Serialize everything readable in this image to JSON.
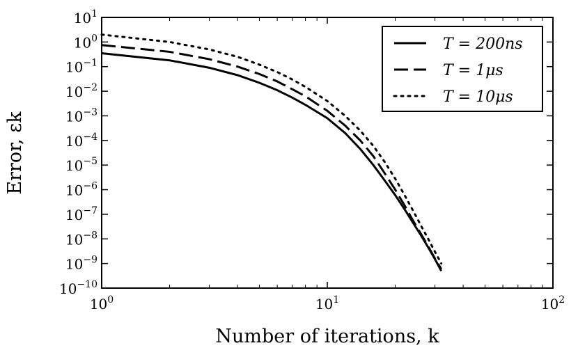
{
  "chart_data": {
    "type": "line",
    "xlabel": "Number of iterations, k",
    "ylabel": "Error, εk",
    "xscale": "log",
    "yscale": "log",
    "xlim": [
      1,
      100
    ],
    "ylim": [
      1e-10,
      10
    ],
    "x_ticks": [
      {
        "value": 1,
        "base": "10",
        "exp": "0"
      },
      {
        "value": 10,
        "base": "10",
        "exp": "1"
      },
      {
        "value": 100,
        "base": "10",
        "exp": "2"
      }
    ],
    "y_ticks": [
      {
        "value": 10,
        "base": "10",
        "exp": "1"
      },
      {
        "value": 1,
        "base": "10",
        "exp": "0"
      },
      {
        "value": 0.1,
        "base": "10",
        "exp": "−1"
      },
      {
        "value": 0.01,
        "base": "10",
        "exp": "−2"
      },
      {
        "value": 0.001,
        "base": "10",
        "exp": "−3"
      },
      {
        "value": 0.0001,
        "base": "10",
        "exp": "−4"
      },
      {
        "value": 1e-05,
        "base": "10",
        "exp": "−5"
      },
      {
        "value": 1e-06,
        "base": "10",
        "exp": "−6"
      },
      {
        "value": 1e-07,
        "base": "10",
        "exp": "−7"
      },
      {
        "value": 1e-08,
        "base": "10",
        "exp": "−8"
      },
      {
        "value": 1e-09,
        "base": "10",
        "exp": "−9"
      },
      {
        "value": 1e-10,
        "base": "10",
        "exp": "−10"
      }
    ],
    "grid": false,
    "legend_position": "top-right",
    "series": [
      {
        "name": "T = 200ns",
        "style": "solid",
        "x": [
          1,
          2,
          3,
          4,
          5,
          6,
          7,
          8,
          10,
          12,
          14,
          16,
          18,
          20,
          22,
          24,
          26,
          28,
          30,
          32
        ],
        "y": [
          0.35,
          0.18,
          0.09,
          0.045,
          0.022,
          0.011,
          0.0055,
          0.0028,
          0.0008,
          0.0002,
          4.5e-05,
          1e-05,
          2.3e-06,
          6e-07,
          1.6e-07,
          4.5e-08,
          1.4e-08,
          4.5e-09,
          1.5e-09,
          5e-10
        ]
      },
      {
        "name": "T = 1μs",
        "style": "dashed",
        "x": [
          1,
          2,
          3,
          4,
          5,
          6,
          7,
          8,
          10,
          12,
          14,
          16,
          18,
          20,
          22,
          24,
          26,
          28,
          30,
          32
        ],
        "y": [
          0.75,
          0.4,
          0.2,
          0.1,
          0.05,
          0.025,
          0.012,
          0.0062,
          0.0016,
          0.0004,
          0.0001,
          2.3e-05,
          4.5e-06,
          1e-06,
          2.3e-07,
          5.5e-08,
          1.6e-08,
          5e-09,
          1.6e-09,
          6e-10
        ]
      },
      {
        "name": "T = 10μs",
        "style": "dotted",
        "x": [
          1,
          2,
          3,
          4,
          5,
          6,
          7,
          8,
          10,
          12,
          14,
          16,
          18,
          20,
          22,
          24,
          26,
          28,
          30,
          32
        ],
        "y": [
          2.0,
          1.0,
          0.5,
          0.25,
          0.12,
          0.06,
          0.03,
          0.015,
          0.004,
          0.001,
          0.00025,
          6e-05,
          1.3e-05,
          2.8e-06,
          6e-07,
          1.4e-07,
          3.5e-08,
          1e-08,
          3e-09,
          1e-09
        ]
      }
    ]
  }
}
